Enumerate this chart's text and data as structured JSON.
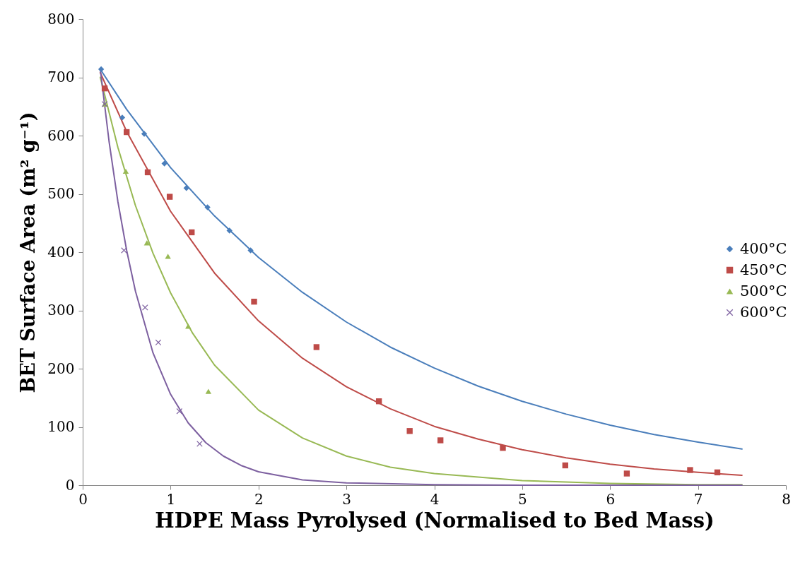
{
  "chart_data": {
    "type": "scatter",
    "xlabel": "HDPE Mass Pyrolysed (Normalised to Bed Mass)",
    "ylabel": "BET Surface Area (m² g⁻¹)",
    "xlim": [
      0,
      8
    ],
    "xticks": [
      0,
      1,
      2,
      3,
      4,
      5,
      6,
      7,
      8
    ],
    "ylim": [
      0,
      800
    ],
    "yticks": [
      0,
      100,
      200,
      300,
      400,
      500,
      600,
      700,
      800
    ],
    "legend": "right",
    "series": [
      {
        "name": "400°C",
        "color": "#4a7ebb",
        "marker": "diamond",
        "x": [
          0.21,
          0.45,
          0.7,
          0.93,
          1.18,
          1.42,
          1.67,
          1.91
        ],
        "values": [
          714,
          631,
          603,
          552,
          510,
          477,
          437,
          403
        ]
      },
      {
        "name": "450°C",
        "color": "#be4b48",
        "marker": "square",
        "x": [
          0.25,
          0.5,
          0.74,
          0.99,
          1.24,
          1.95,
          2.66,
          3.37,
          3.72,
          4.07,
          4.78,
          5.49,
          6.19,
          6.91,
          7.22
        ],
        "values": [
          681,
          606,
          537,
          495,
          434,
          315,
          237,
          144,
          93,
          77,
          64,
          34,
          20,
          26,
          22
        ]
      },
      {
        "name": "500°C",
        "color": "#98b954",
        "marker": "triangle",
        "x": [
          0.25,
          0.49,
          0.73,
          0.97,
          1.2,
          1.43
        ],
        "values": [
          654,
          539,
          416,
          393,
          273,
          161
        ]
      },
      {
        "name": "600°C",
        "color": "#7d60a0",
        "marker": "cross",
        "x": [
          0.25,
          0.47,
          0.71,
          0.86,
          1.1,
          1.33
        ],
        "values": [
          654,
          403,
          305,
          245,
          127,
          71
        ]
      },
      {
        "type": "line",
        "color": "#4a7ebb",
        "marker": "none",
        "x": [
          0.2,
          0.5,
          1,
          1.5,
          2,
          2.5,
          3,
          3.5,
          4,
          4.5,
          5,
          5.5,
          6,
          6.5,
          7,
          7.5
        ],
        "values": [
          714,
          645,
          545,
          462,
          391,
          331,
          280,
          237,
          201,
          170,
          144,
          122,
          103,
          87,
          74,
          62
        ]
      },
      {
        "type": "line",
        "color": "#be4b48",
        "marker": "none",
        "x": [
          0.2,
          0.5,
          1,
          1.5,
          2,
          2.5,
          3,
          3.5,
          4,
          4.5,
          5,
          5.5,
          6,
          6.5,
          7,
          7.5
        ],
        "values": [
          708,
          607,
          470,
          364,
          282,
          218,
          169,
          131,
          101,
          79,
          61,
          47,
          36,
          28,
          22,
          17
        ]
      },
      {
        "type": "line",
        "color": "#98b954",
        "marker": "none",
        "x": [
          0.2,
          0.4,
          0.6,
          0.8,
          1,
          1.25,
          1.5,
          2,
          2.5,
          3,
          3.5,
          4,
          5,
          6,
          7,
          7.5
        ],
        "values": [
          700,
          580,
          480,
          398,
          330,
          261,
          206,
          129,
          81,
          50,
          31,
          20,
          8,
          3,
          1,
          1
        ]
      },
      {
        "type": "line",
        "color": "#7d60a0",
        "marker": "none",
        "x": [
          0.2,
          0.3,
          0.4,
          0.5,
          0.6,
          0.8,
          1,
          1.2,
          1.4,
          1.6,
          1.8,
          2,
          2.5,
          3,
          4,
          5,
          6,
          7.5
        ],
        "values": [
          714,
          590,
          487,
          403,
          333,
          227,
          156,
          107,
          73,
          50,
          34,
          23,
          9,
          4,
          1,
          0,
          0,
          0
        ]
      }
    ]
  }
}
